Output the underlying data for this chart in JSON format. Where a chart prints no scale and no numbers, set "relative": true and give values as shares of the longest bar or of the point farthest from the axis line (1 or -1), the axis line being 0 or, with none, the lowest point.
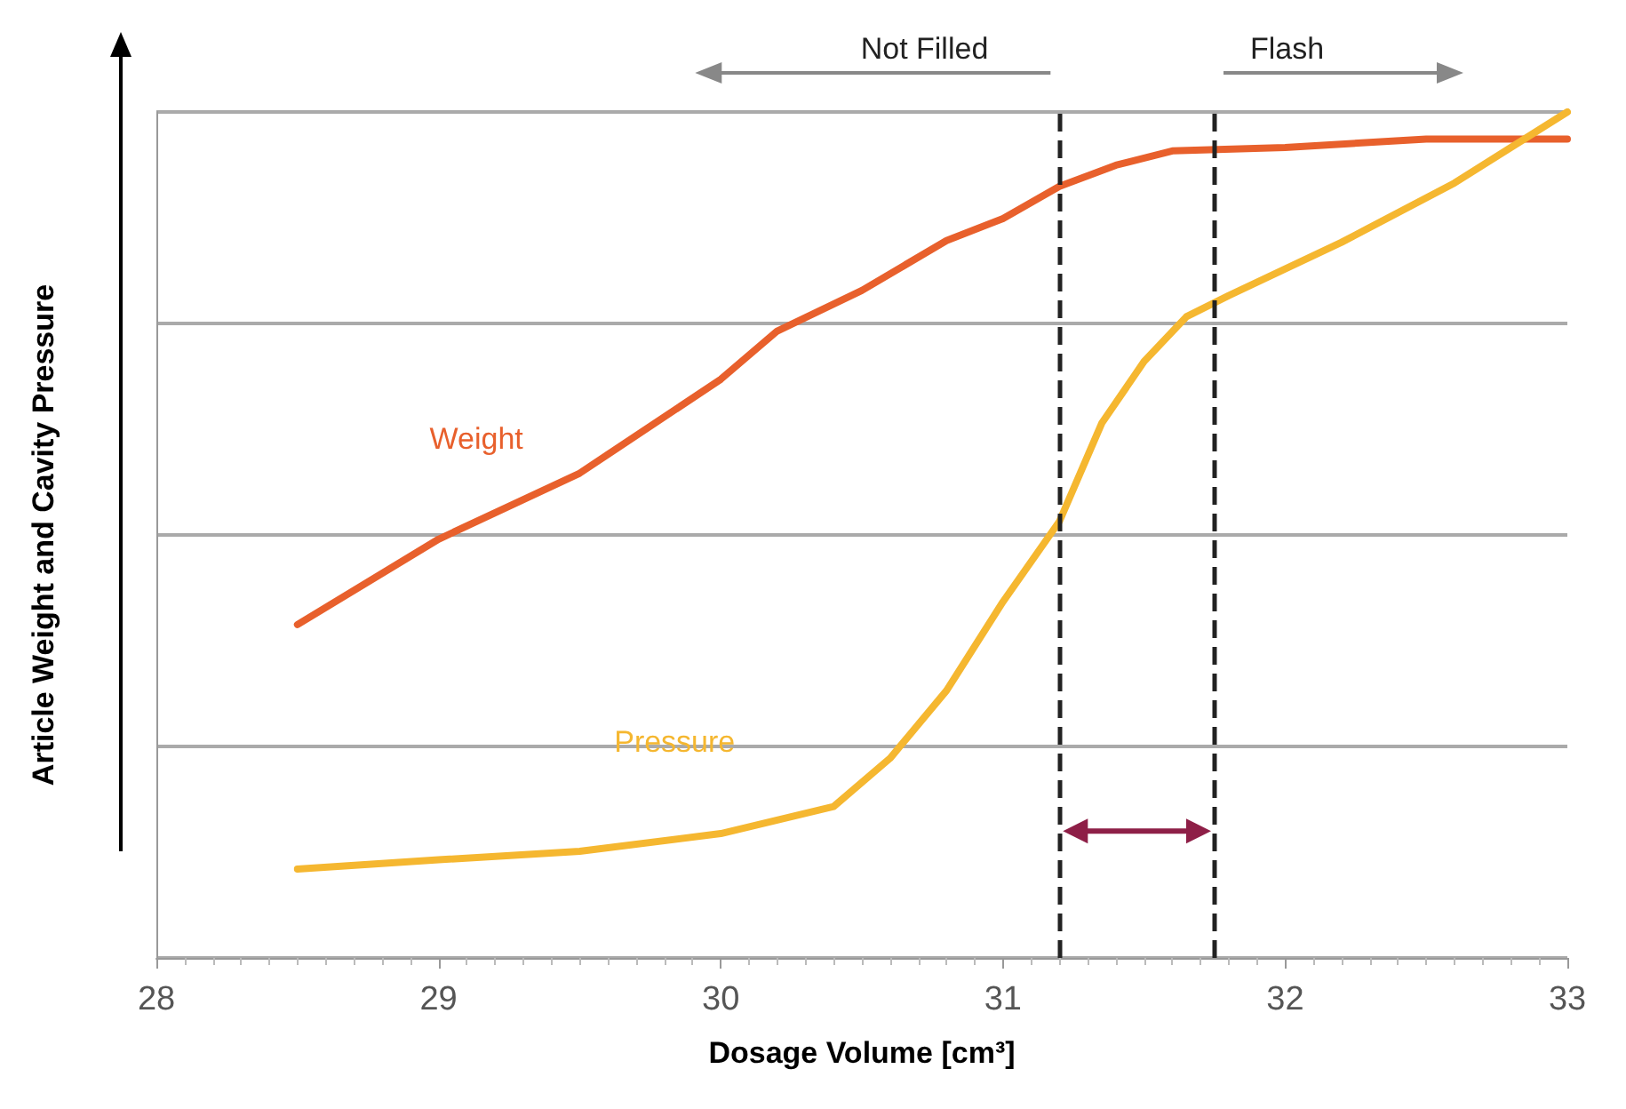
{
  "chart_data": {
    "type": "line",
    "relative": true,
    "xlabel": "Dosage Volume [cm³]",
    "ylabel": "Article Weight and Cavity Pressure",
    "xlim": [
      28,
      33
    ],
    "xticks": [
      28,
      29,
      30,
      31,
      32,
      33
    ],
    "grid": "y",
    "legend": false,
    "marker": "none",
    "line_style": "solid",
    "series": [
      {
        "name": "Weight",
        "color": "#e8602c",
        "x": [
          28.5,
          29,
          29.5,
          30,
          30.2,
          30.5,
          30.8,
          31,
          31.2,
          31.4,
          31.6,
          32,
          32.5,
          33
        ],
        "values": [
          0.394,
          0.495,
          0.573,
          0.684,
          0.741,
          0.789,
          0.848,
          0.874,
          0.912,
          0.937,
          0.954,
          0.958,
          0.968,
          0.968
        ]
      },
      {
        "name": "Pressure",
        "color": "#f5b730",
        "x": [
          28.5,
          29,
          29.5,
          30,
          30.4,
          30.6,
          30.8,
          31,
          31.2,
          31.35,
          31.5,
          31.65,
          31.8,
          32.2,
          32.6,
          33
        ],
        "values": [
          0.105,
          0.116,
          0.126,
          0.147,
          0.179,
          0.236,
          0.316,
          0.421,
          0.516,
          0.632,
          0.705,
          0.758,
          0.783,
          0.846,
          0.916,
          1.0
        ]
      }
    ],
    "ref_lines": [
      {
        "axis": "x",
        "value": 31.2,
        "color": "#222222",
        "line_style": "dashed"
      },
      {
        "axis": "x",
        "value": 31.75,
        "color": "#222222",
        "line_style": "dashed"
      }
    ],
    "annotations": [
      "Not Filled",
      "Flash"
    ]
  }
}
